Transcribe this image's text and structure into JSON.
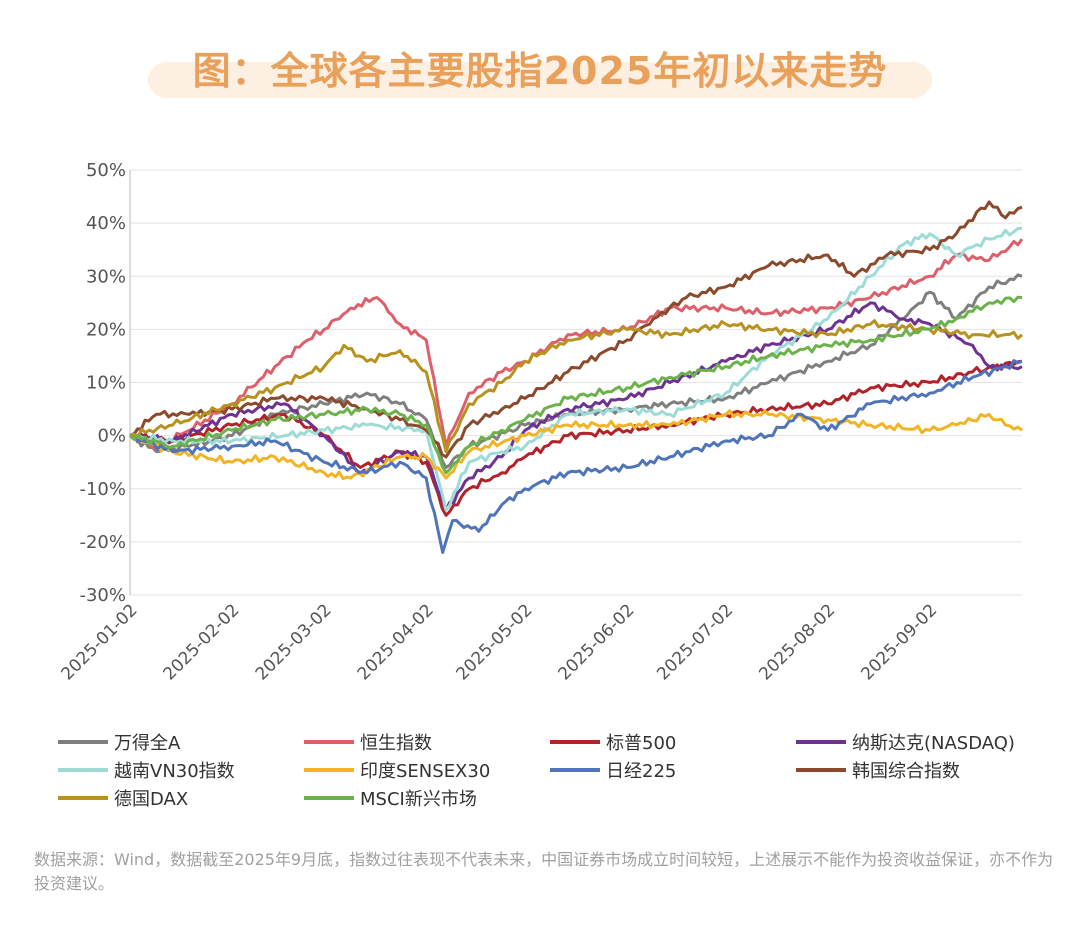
{
  "title": "图：全球各主要股指2025年初以来走势",
  "footnote": "数据来源：Wind，数据截至2025年9月底，指数过往表现不代表未来，中国证券市场成立时间较短，上述展示不能作为投资收益保证，亦不作为投资建议。",
  "chart_data": {
    "type": "line",
    "title": "图：全球各主要股指2025年初以来走势",
    "xlabel": "",
    "ylabel": "",
    "ylim": [
      -30,
      50
    ],
    "y_ticks": [
      "50%",
      "40%",
      "30%",
      "20%",
      "10%",
      "0%",
      "-10%",
      "-20%",
      "-30%"
    ],
    "x_ticks": [
      "2025-01-02",
      "2025-02-02",
      "2025-03-02",
      "2025-04-02",
      "2025-05-02",
      "2025-06-02",
      "2025-07-02",
      "2025-08-02",
      "2025-09-02"
    ],
    "x_range": [
      "2025-01-02",
      "2025-09-30"
    ],
    "grid": "horizontal",
    "legend": "bottom",
    "series": [
      {
        "name": "万得全A",
        "color": "#7f7f7f",
        "points": [
          [
            "2025-01-02",
            0
          ],
          [
            "2025-01-10",
            -3
          ],
          [
            "2025-01-20",
            -2
          ],
          [
            "2025-02-02",
            0
          ],
          [
            "2025-02-15",
            4
          ],
          [
            "2025-03-02",
            6
          ],
          [
            "2025-03-15",
            8
          ],
          [
            "2025-03-25",
            6
          ],
          [
            "2025-04-02",
            3
          ],
          [
            "2025-04-08",
            -6
          ],
          [
            "2025-04-15",
            -2
          ],
          [
            "2025-05-02",
            2
          ],
          [
            "2025-05-15",
            4
          ],
          [
            "2025-06-02",
            5
          ],
          [
            "2025-06-15",
            6
          ],
          [
            "2025-07-02",
            7
          ],
          [
            "2025-07-15",
            10
          ],
          [
            "2025-08-02",
            14
          ],
          [
            "2025-08-15",
            17
          ],
          [
            "2025-08-25",
            22
          ],
          [
            "2025-09-02",
            27
          ],
          [
            "2025-09-10",
            22
          ],
          [
            "2025-09-20",
            28
          ],
          [
            "2025-09-30",
            30
          ]
        ]
      },
      {
        "name": "恒生指数",
        "color": "#dc5f6a",
        "points": [
          [
            "2025-01-02",
            0
          ],
          [
            "2025-01-10",
            -2
          ],
          [
            "2025-01-20",
            1
          ],
          [
            "2025-02-02",
            6
          ],
          [
            "2025-02-15",
            13
          ],
          [
            "2025-02-25",
            18
          ],
          [
            "2025-03-02",
            20
          ],
          [
            "2025-03-10",
            24
          ],
          [
            "2025-03-18",
            26
          ],
          [
            "2025-03-25",
            21
          ],
          [
            "2025-04-02",
            18
          ],
          [
            "2025-04-08",
            -2
          ],
          [
            "2025-04-15",
            8
          ],
          [
            "2025-04-25",
            12
          ],
          [
            "2025-05-02",
            14
          ],
          [
            "2025-05-15",
            19
          ],
          [
            "2025-06-02",
            20
          ],
          [
            "2025-06-15",
            24
          ],
          [
            "2025-07-02",
            24
          ],
          [
            "2025-07-15",
            23
          ],
          [
            "2025-08-02",
            24
          ],
          [
            "2025-08-15",
            26
          ],
          [
            "2025-09-02",
            30
          ],
          [
            "2025-09-10",
            34
          ],
          [
            "2025-09-20",
            33
          ],
          [
            "2025-09-30",
            37
          ]
        ]
      },
      {
        "name": "标普500",
        "color": "#b22228",
        "points": [
          [
            "2025-01-02",
            0
          ],
          [
            "2025-01-15",
            -1
          ],
          [
            "2025-02-02",
            2
          ],
          [
            "2025-02-18",
            4
          ],
          [
            "2025-03-02",
            0
          ],
          [
            "2025-03-13",
            -6
          ],
          [
            "2025-03-25",
            -3
          ],
          [
            "2025-04-02",
            -5
          ],
          [
            "2025-04-08",
            -15
          ],
          [
            "2025-04-15",
            -10
          ],
          [
            "2025-04-25",
            -7
          ],
          [
            "2025-05-02",
            -4
          ],
          [
            "2025-05-15",
            0
          ],
          [
            "2025-06-02",
            1
          ],
          [
            "2025-06-15",
            2
          ],
          [
            "2025-07-02",
            4
          ],
          [
            "2025-07-15",
            5
          ],
          [
            "2025-08-02",
            6
          ],
          [
            "2025-08-15",
            9
          ],
          [
            "2025-09-02",
            10
          ],
          [
            "2025-09-15",
            12
          ],
          [
            "2025-09-30",
            14
          ]
        ]
      },
      {
        "name": "纳斯达克(NASDAQ)",
        "color": "#6e3293",
        "points": [
          [
            "2025-01-02",
            0
          ],
          [
            "2025-01-15",
            -1
          ],
          [
            "2025-02-02",
            4
          ],
          [
            "2025-02-18",
            6
          ],
          [
            "2025-03-02",
            0
          ],
          [
            "2025-03-13",
            -7
          ],
          [
            "2025-03-25",
            -3
          ],
          [
            "2025-04-02",
            -4
          ],
          [
            "2025-04-08",
            -14
          ],
          [
            "2025-04-15",
            -8
          ],
          [
            "2025-04-25",
            -4
          ],
          [
            "2025-05-02",
            1
          ],
          [
            "2025-05-15",
            5
          ],
          [
            "2025-06-02",
            7
          ],
          [
            "2025-06-15",
            10
          ],
          [
            "2025-07-02",
            14
          ],
          [
            "2025-07-15",
            17
          ],
          [
            "2025-08-02",
            20
          ],
          [
            "2025-08-15",
            25
          ],
          [
            "2025-08-25",
            22
          ],
          [
            "2025-09-02",
            21
          ],
          [
            "2025-09-15",
            17
          ],
          [
            "2025-09-20",
            13
          ],
          [
            "2025-09-30",
            13
          ]
        ]
      },
      {
        "name": "越南VN30指数",
        "color": "#9ddcd6",
        "points": [
          [
            "2025-01-02",
            0
          ],
          [
            "2025-01-15",
            -1
          ],
          [
            "2025-02-02",
            -1
          ],
          [
            "2025-02-18",
            0
          ],
          [
            "2025-03-02",
            1
          ],
          [
            "2025-03-15",
            2
          ],
          [
            "2025-04-02",
            1
          ],
          [
            "2025-04-08",
            -14
          ],
          [
            "2025-04-15",
            -5
          ],
          [
            "2025-04-25",
            -3
          ],
          [
            "2025-05-02",
            -2
          ],
          [
            "2025-05-15",
            4
          ],
          [
            "2025-06-02",
            5
          ],
          [
            "2025-06-15",
            4
          ],
          [
            "2025-07-02",
            8
          ],
          [
            "2025-07-15",
            15
          ],
          [
            "2025-08-02",
            22
          ],
          [
            "2025-08-15",
            30
          ],
          [
            "2025-08-25",
            36
          ],
          [
            "2025-09-02",
            38
          ],
          [
            "2025-09-10",
            34
          ],
          [
            "2025-09-20",
            37
          ],
          [
            "2025-09-30",
            39
          ]
        ]
      },
      {
        "name": "印度SENSEX30",
        "color": "#f0b425",
        "points": [
          [
            "2025-01-02",
            0
          ],
          [
            "2025-01-15",
            -3
          ],
          [
            "2025-02-02",
            -5
          ],
          [
            "2025-02-15",
            -4
          ],
          [
            "2025-03-02",
            -7
          ],
          [
            "2025-03-10",
            -8
          ],
          [
            "2025-03-25",
            -4
          ],
          [
            "2025-04-02",
            -4
          ],
          [
            "2025-04-08",
            -8
          ],
          [
            "2025-04-15",
            -3
          ],
          [
            "2025-05-02",
            0
          ],
          [
            "2025-05-15",
            2
          ],
          [
            "2025-06-02",
            2
          ],
          [
            "2025-06-15",
            2
          ],
          [
            "2025-07-02",
            4
          ],
          [
            "2025-07-15",
            4
          ],
          [
            "2025-08-02",
            3
          ],
          [
            "2025-08-15",
            2
          ],
          [
            "2025-09-02",
            1
          ],
          [
            "2025-09-10",
            2
          ],
          [
            "2025-09-20",
            4
          ],
          [
            "2025-09-25",
            2
          ],
          [
            "2025-09-30",
            1
          ]
        ]
      },
      {
        "name": "日经225",
        "color": "#4f74b9",
        "points": [
          [
            "2025-01-02",
            0
          ],
          [
            "2025-01-15",
            -3
          ],
          [
            "2025-02-02",
            -2
          ],
          [
            "2025-02-15",
            -1
          ],
          [
            "2025-03-02",
            -5
          ],
          [
            "2025-03-15",
            -7
          ],
          [
            "2025-03-25",
            -5
          ],
          [
            "2025-04-02",
            -8
          ],
          [
            "2025-04-07",
            -22
          ],
          [
            "2025-04-10",
            -16
          ],
          [
            "2025-04-18",
            -18
          ],
          [
            "2025-04-25",
            -13
          ],
          [
            "2025-05-02",
            -10
          ],
          [
            "2025-05-15",
            -7
          ],
          [
            "2025-06-02",
            -6
          ],
          [
            "2025-06-15",
            -4
          ],
          [
            "2025-07-02",
            -1
          ],
          [
            "2025-07-15",
            0
          ],
          [
            "2025-07-25",
            4
          ],
          [
            "2025-08-02",
            1
          ],
          [
            "2025-08-15",
            6
          ],
          [
            "2025-09-02",
            8
          ],
          [
            "2025-09-15",
            11
          ],
          [
            "2025-09-30",
            14
          ]
        ]
      },
      {
        "name": "韩国综合指数",
        "color": "#8b4a2b",
        "points": [
          [
            "2025-01-02",
            0
          ],
          [
            "2025-01-10",
            4
          ],
          [
            "2025-01-20",
            4
          ],
          [
            "2025-02-02",
            5
          ],
          [
            "2025-02-15",
            7
          ],
          [
            "2025-03-02",
            7
          ],
          [
            "2025-03-15",
            5
          ],
          [
            "2025-03-25",
            3
          ],
          [
            "2025-04-02",
            1
          ],
          [
            "2025-04-08",
            -4
          ],
          [
            "2025-04-15",
            2
          ],
          [
            "2025-04-25",
            5
          ],
          [
            "2025-05-02",
            7
          ],
          [
            "2025-05-15",
            12
          ],
          [
            "2025-06-02",
            18
          ],
          [
            "2025-06-10",
            22
          ],
          [
            "2025-06-20",
            26
          ],
          [
            "2025-07-02",
            28
          ],
          [
            "2025-07-15",
            32
          ],
          [
            "2025-08-02",
            34
          ],
          [
            "2025-08-10",
            30
          ],
          [
            "2025-08-20",
            34
          ],
          [
            "2025-09-02",
            35
          ],
          [
            "2025-09-10",
            38
          ],
          [
            "2025-09-20",
            44
          ],
          [
            "2025-09-25",
            41
          ],
          [
            "2025-09-30",
            43
          ]
        ]
      },
      {
        "name": "德国DAX",
        "color": "#b8911e",
        "points": [
          [
            "2025-01-02",
            0
          ],
          [
            "2025-01-15",
            2
          ],
          [
            "2025-02-02",
            6
          ],
          [
            "2025-02-15",
            9
          ],
          [
            "2025-03-02",
            13
          ],
          [
            "2025-03-08",
            17
          ],
          [
            "2025-03-15",
            14
          ],
          [
            "2025-03-25",
            16
          ],
          [
            "2025-04-02",
            12
          ],
          [
            "2025-04-08",
            -3
          ],
          [
            "2025-04-15",
            6
          ],
          [
            "2025-04-25",
            10
          ],
          [
            "2025-05-02",
            14
          ],
          [
            "2025-05-15",
            18
          ],
          [
            "2025-06-02",
            20
          ],
          [
            "2025-06-15",
            19
          ],
          [
            "2025-07-02",
            21
          ],
          [
            "2025-07-15",
            20
          ],
          [
            "2025-08-02",
            19
          ],
          [
            "2025-08-15",
            21
          ],
          [
            "2025-09-02",
            20
          ],
          [
            "2025-09-15",
            19
          ],
          [
            "2025-09-30",
            19
          ]
        ]
      },
      {
        "name": "MSCI新兴市场",
        "color": "#6cb24b",
        "points": [
          [
            "2025-01-02",
            0
          ],
          [
            "2025-01-15",
            -2
          ],
          [
            "2025-02-02",
            1
          ],
          [
            "2025-02-15",
            3
          ],
          [
            "2025-03-02",
            4
          ],
          [
            "2025-03-15",
            5
          ],
          [
            "2025-03-25",
            4
          ],
          [
            "2025-04-02",
            2
          ],
          [
            "2025-04-08",
            -7
          ],
          [
            "2025-04-15",
            -2
          ],
          [
            "2025-04-25",
            1
          ],
          [
            "2025-05-02",
            3
          ],
          [
            "2025-05-15",
            7
          ],
          [
            "2025-06-02",
            9
          ],
          [
            "2025-06-15",
            11
          ],
          [
            "2025-07-02",
            13
          ],
          [
            "2025-07-15",
            15
          ],
          [
            "2025-08-02",
            17
          ],
          [
            "2025-08-15",
            18
          ],
          [
            "2025-09-02",
            20
          ],
          [
            "2025-09-10",
            22
          ],
          [
            "2025-09-20",
            25
          ],
          [
            "2025-09-30",
            26
          ]
        ]
      }
    ]
  }
}
